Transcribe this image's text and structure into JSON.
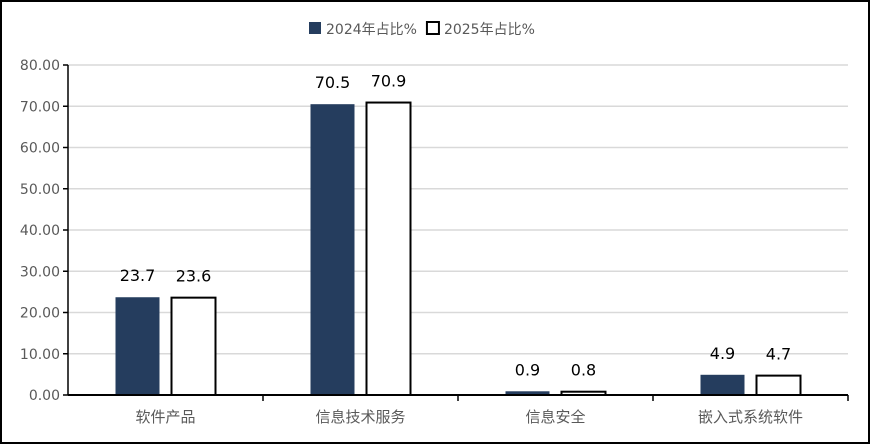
{
  "chart_data": {
    "type": "bar",
    "title": "",
    "xlabel": "",
    "ylabel": "",
    "categories": [
      "软件产品",
      "信息技术服务",
      "信息安全",
      "嵌入式系统软件"
    ],
    "series": [
      {
        "name": "2024年占比%",
        "values": [
          23.7,
          70.5,
          0.9,
          4.9
        ],
        "color": "#253D5E",
        "fill": "solid"
      },
      {
        "name": "2025年占比%",
        "values": [
          23.6,
          70.9,
          0.8,
          4.7
        ],
        "color": "#000000",
        "fill": "none"
      }
    ],
    "ylim": [
      0,
      80
    ],
    "yticks": [
      "0.00",
      "10.00",
      "20.00",
      "30.00",
      "40.00",
      "50.00",
      "60.00",
      "70.00",
      "80.00"
    ],
    "grid": true,
    "legend_position": "top-center",
    "data_labels": true
  }
}
